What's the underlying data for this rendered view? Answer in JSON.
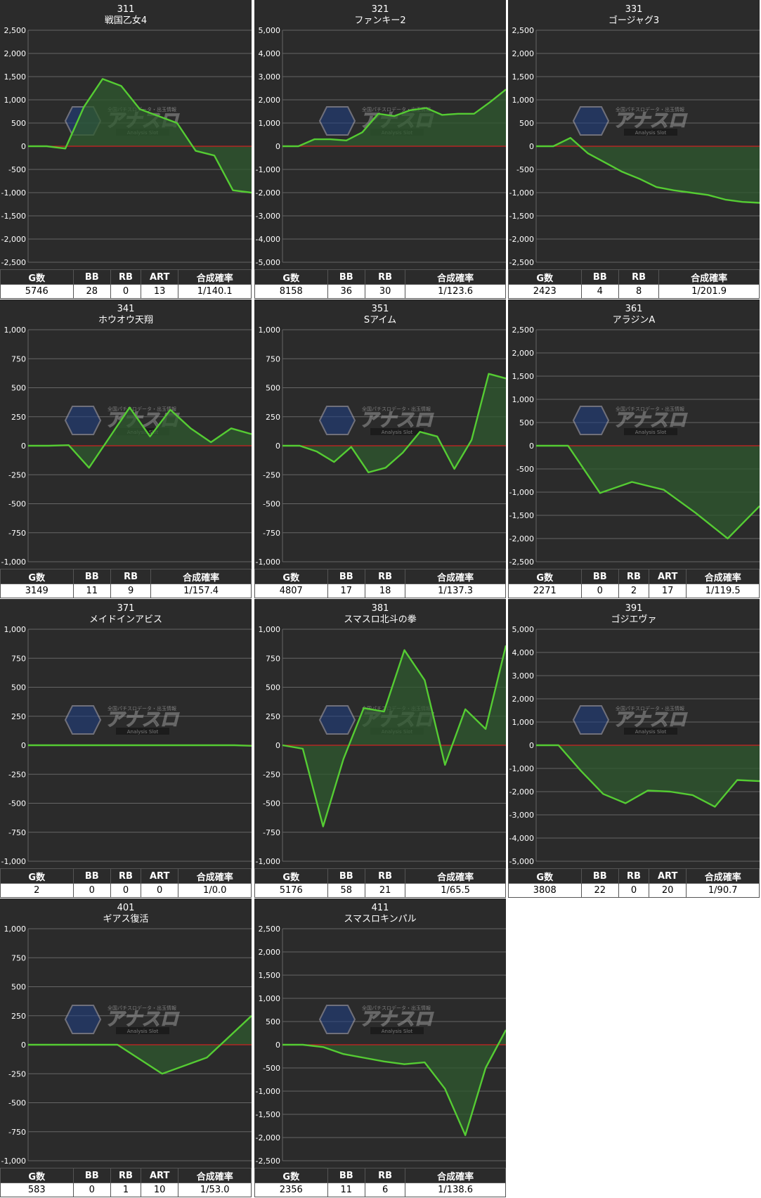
{
  "watermark": {
    "top": "全国パチスロデータ・出玉情報",
    "main": "アナスロ",
    "sub": "Analysis Slot"
  },
  "colors": {
    "line": "#55cc33",
    "fill": "#2f5a2f",
    "zero": "#cc2222",
    "grid": "#666666",
    "panel": "#2b2b2b"
  },
  "charts": [
    {
      "number": "311",
      "name": "戦国乙女4",
      "chart_data": {
        "type": "area",
        "ylim": [
          -2500,
          2500
        ],
        "yticks": [
          "2,500",
          "2,000",
          "1,500",
          "1,000",
          "500",
          "0",
          "-500",
          "-1,000",
          "-1,500",
          "-2,000",
          "-2,500"
        ],
        "values": [
          0,
          0,
          -50,
          850,
          1450,
          1300,
          800,
          650,
          500,
          -100,
          -200,
          -950,
          -1000
        ]
      },
      "stats": {
        "headers": [
          "G数",
          "BB",
          "RB",
          "ART",
          "合成確率"
        ],
        "values": [
          "5746",
          "28",
          "0",
          "13",
          "1/140.1"
        ]
      }
    },
    {
      "number": "321",
      "name": "ファンキー2",
      "chart_data": {
        "type": "area",
        "ylim": [
          -5000,
          5000
        ],
        "yticks": [
          "5,000",
          "4,000",
          "3,000",
          "2,000",
          "1,000",
          "0",
          "-1,000",
          "-2,000",
          "-3,000",
          "-4,000",
          "-5,000"
        ],
        "values": [
          0,
          0,
          300,
          300,
          250,
          600,
          1400,
          1300,
          1550,
          1650,
          1350,
          1400,
          1400,
          1900,
          2450
        ]
      },
      "stats": {
        "headers": [
          "G数",
          "BB",
          "RB",
          "合成確率"
        ],
        "values": [
          "8158",
          "36",
          "30",
          "1/123.6"
        ]
      }
    },
    {
      "number": "331",
      "name": "ゴージャグ3",
      "chart_data": {
        "type": "area",
        "ylim": [
          -2500,
          2500
        ],
        "yticks": [
          "2,500",
          "2,000",
          "1,500",
          "1,000",
          "500",
          "0",
          "-500",
          "-1,000",
          "-1,500",
          "-2,000",
          "-2,500"
        ],
        "values": [
          0,
          0,
          180,
          -150,
          -350,
          -550,
          -700,
          -880,
          -950,
          -1000,
          -1050,
          -1150,
          -1200,
          -1220
        ]
      },
      "stats": {
        "headers": [
          "G数",
          "BB",
          "RB",
          "合成確率"
        ],
        "values": [
          "2423",
          "4",
          "8",
          "1/201.9"
        ]
      }
    },
    {
      "number": "341",
      "name": "ホウオウ天翔",
      "chart_data": {
        "type": "area",
        "ylim": [
          -1000,
          1000
        ],
        "yticks": [
          "1,000",
          "750",
          "500",
          "250",
          "0",
          "-250",
          "-500",
          "-750",
          "-1,000"
        ],
        "values": [
          0,
          0,
          5,
          -190,
          70,
          330,
          80,
          310,
          150,
          30,
          150,
          100
        ]
      },
      "stats": {
        "headers": [
          "G数",
          "BB",
          "RB",
          "合成確率"
        ],
        "values": [
          "3149",
          "11",
          "9",
          "1/157.4"
        ]
      }
    },
    {
      "number": "351",
      "name": "Sアイム",
      "chart_data": {
        "type": "area",
        "ylim": [
          -1000,
          1000
        ],
        "yticks": [
          "1,000",
          "750",
          "500",
          "250",
          "0",
          "-250",
          "-500",
          "-750",
          "-1,000"
        ],
        "values": [
          0,
          0,
          -50,
          -140,
          -10,
          -230,
          -190,
          -60,
          120,
          80,
          -200,
          50,
          620,
          580
        ]
      },
      "stats": {
        "headers": [
          "G数",
          "BB",
          "RB",
          "合成確率"
        ],
        "values": [
          "4807",
          "17",
          "18",
          "1/137.3"
        ]
      }
    },
    {
      "number": "361",
      "name": "アラジンA",
      "chart_data": {
        "type": "area",
        "ylim": [
          -2500,
          2500
        ],
        "yticks": [
          "2,500",
          "2,000",
          "1,500",
          "1,000",
          "500",
          "0",
          "-500",
          "-1,000",
          "-1,500",
          "-2,000",
          "-2,500"
        ],
        "values": [
          0,
          0,
          -1020,
          -780,
          -950,
          -1450,
          -2000,
          -1300
        ]
      },
      "stats": {
        "headers": [
          "G数",
          "BB",
          "RB",
          "ART",
          "合成確率"
        ],
        "values": [
          "2271",
          "0",
          "2",
          "17",
          "1/119.5"
        ]
      }
    },
    {
      "number": "371",
      "name": "メイドインアビス",
      "chart_data": {
        "type": "area",
        "ylim": [
          -1000,
          1000
        ],
        "yticks": [
          "1,000",
          "750",
          "500",
          "250",
          "0",
          "-250",
          "-500",
          "-750",
          "-1,000"
        ],
        "values": [
          0,
          0,
          0,
          0,
          0,
          0,
          0,
          0,
          0,
          0,
          0,
          0,
          0,
          -5
        ]
      },
      "stats": {
        "headers": [
          "G数",
          "BB",
          "RB",
          "ART",
          "合成確率"
        ],
        "values": [
          "2",
          "0",
          "0",
          "0",
          "1/0.0"
        ]
      }
    },
    {
      "number": "381",
      "name": "スマスロ北斗の拳",
      "chart_data": {
        "type": "area",
        "ylim": [
          -1000,
          1000
        ],
        "yticks": [
          "1,000",
          "750",
          "500",
          "250",
          "0",
          "-250",
          "-500",
          "-750",
          "-1,000"
        ],
        "values": [
          0,
          -30,
          -700,
          -120,
          320,
          290,
          820,
          560,
          -170,
          310,
          140,
          860
        ]
      },
      "stats": {
        "headers": [
          "G数",
          "BB",
          "RB",
          "合成確率"
        ],
        "values": [
          "5176",
          "58",
          "21",
          "1/65.5"
        ]
      }
    },
    {
      "number": "391",
      "name": "ゴジエヴァ",
      "chart_data": {
        "type": "area",
        "ylim": [
          -5000,
          5000
        ],
        "yticks": [
          "5,000",
          "4,000",
          "3,000",
          "2,000",
          "1,000",
          "0",
          "-1,000",
          "-2,000",
          "-3,000",
          "-4,000",
          "-5,000"
        ],
        "values": [
          0,
          0,
          -1100,
          -2100,
          -2500,
          -1950,
          -2000,
          -2150,
          -2650,
          -1500,
          -1550
        ]
      },
      "stats": {
        "headers": [
          "G数",
          "BB",
          "RB",
          "ART",
          "合成確率"
        ],
        "values": [
          "3808",
          "22",
          "0",
          "20",
          "1/90.7"
        ]
      }
    },
    {
      "number": "401",
      "name": "ギアス復活",
      "chart_data": {
        "type": "area",
        "ylim": [
          -1000,
          1000
        ],
        "yticks": [
          "1,000",
          "750",
          "500",
          "250",
          "0",
          "-250",
          "-500",
          "-750",
          "-1,000"
        ],
        "values": [
          0,
          0,
          0,
          -250,
          -110,
          250
        ]
      },
      "stats": {
        "headers": [
          "G数",
          "BB",
          "RB",
          "ART",
          "合成確率"
        ],
        "values": [
          "583",
          "0",
          "1",
          "10",
          "1/53.0"
        ]
      }
    },
    {
      "number": "411",
      "name": "スマスロキンパル",
      "chart_data": {
        "type": "area",
        "ylim": [
          -2500,
          2500
        ],
        "yticks": [
          "2,500",
          "2,000",
          "1,500",
          "1,000",
          "500",
          "0",
          "-500",
          "-1,000",
          "-1,500",
          "-2,000",
          "-2,500"
        ],
        "values": [
          0,
          0,
          -50,
          -200,
          -280,
          -360,
          -420,
          -380,
          -950,
          -1950,
          -500,
          320
        ]
      },
      "stats": {
        "headers": [
          "G数",
          "BB",
          "RB",
          "合成確率"
        ],
        "values": [
          "2356",
          "11",
          "6",
          "1/138.6"
        ]
      }
    }
  ]
}
